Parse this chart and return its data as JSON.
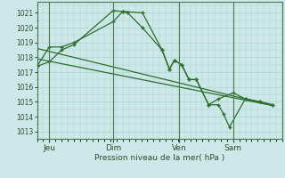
{
  "background_color": "#cce8e8",
  "grid_color": "#aad4cc",
  "line_color": "#2d6e2d",
  "ylabel": "Pression niveau de la mer( hPa )",
  "ylim": [
    1012.5,
    1021.75
  ],
  "yticks": [
    1013,
    1014,
    1015,
    1016,
    1017,
    1018,
    1019,
    1020,
    1021
  ],
  "xlim": [
    0,
    10.0
  ],
  "day_labels": [
    "Jeu",
    "Dim",
    "Ven",
    "Sam"
  ],
  "day_positions": [
    0.5,
    3.1,
    5.8,
    8.0
  ],
  "vline_positions": [
    0.5,
    3.1,
    5.8,
    8.0
  ],
  "series1_x": [
    0.0,
    0.5,
    1.0,
    1.5,
    3.1,
    3.5,
    3.7,
    4.3,
    5.1,
    5.4,
    5.6,
    5.9,
    6.2,
    6.5,
    7.0,
    7.4,
    7.6,
    7.85,
    8.5,
    9.1,
    9.6
  ],
  "series1_y": [
    1017.4,
    1017.7,
    1018.5,
    1018.85,
    1021.15,
    1021.1,
    1021.0,
    1020.0,
    1018.5,
    1017.2,
    1017.8,
    1017.5,
    1016.5,
    1016.5,
    1014.8,
    1014.8,
    1014.2,
    1013.3,
    1015.2,
    1015.0,
    1014.8
  ],
  "series2_x": [
    0.0,
    0.5,
    1.0,
    1.5,
    3.1,
    3.5,
    4.3,
    5.1,
    5.4,
    5.6,
    5.9,
    6.2,
    6.5,
    7.0,
    7.4,
    8.0,
    8.5,
    9.1,
    9.6
  ],
  "series2_y": [
    1017.4,
    1018.7,
    1018.7,
    1019.0,
    1020.4,
    1021.1,
    1021.0,
    1018.5,
    1017.2,
    1017.8,
    1017.5,
    1016.5,
    1016.5,
    1014.8,
    1015.2,
    1015.6,
    1015.2,
    1015.0,
    1014.8
  ],
  "trend_x": [
    0.0,
    9.6
  ],
  "trend_y": [
    1018.6,
    1014.75
  ],
  "trend2_x": [
    0.0,
    9.6
  ],
  "trend2_y": [
    1017.9,
    1014.75
  ],
  "figsize": [
    3.2,
    2.0
  ],
  "dpi": 100
}
